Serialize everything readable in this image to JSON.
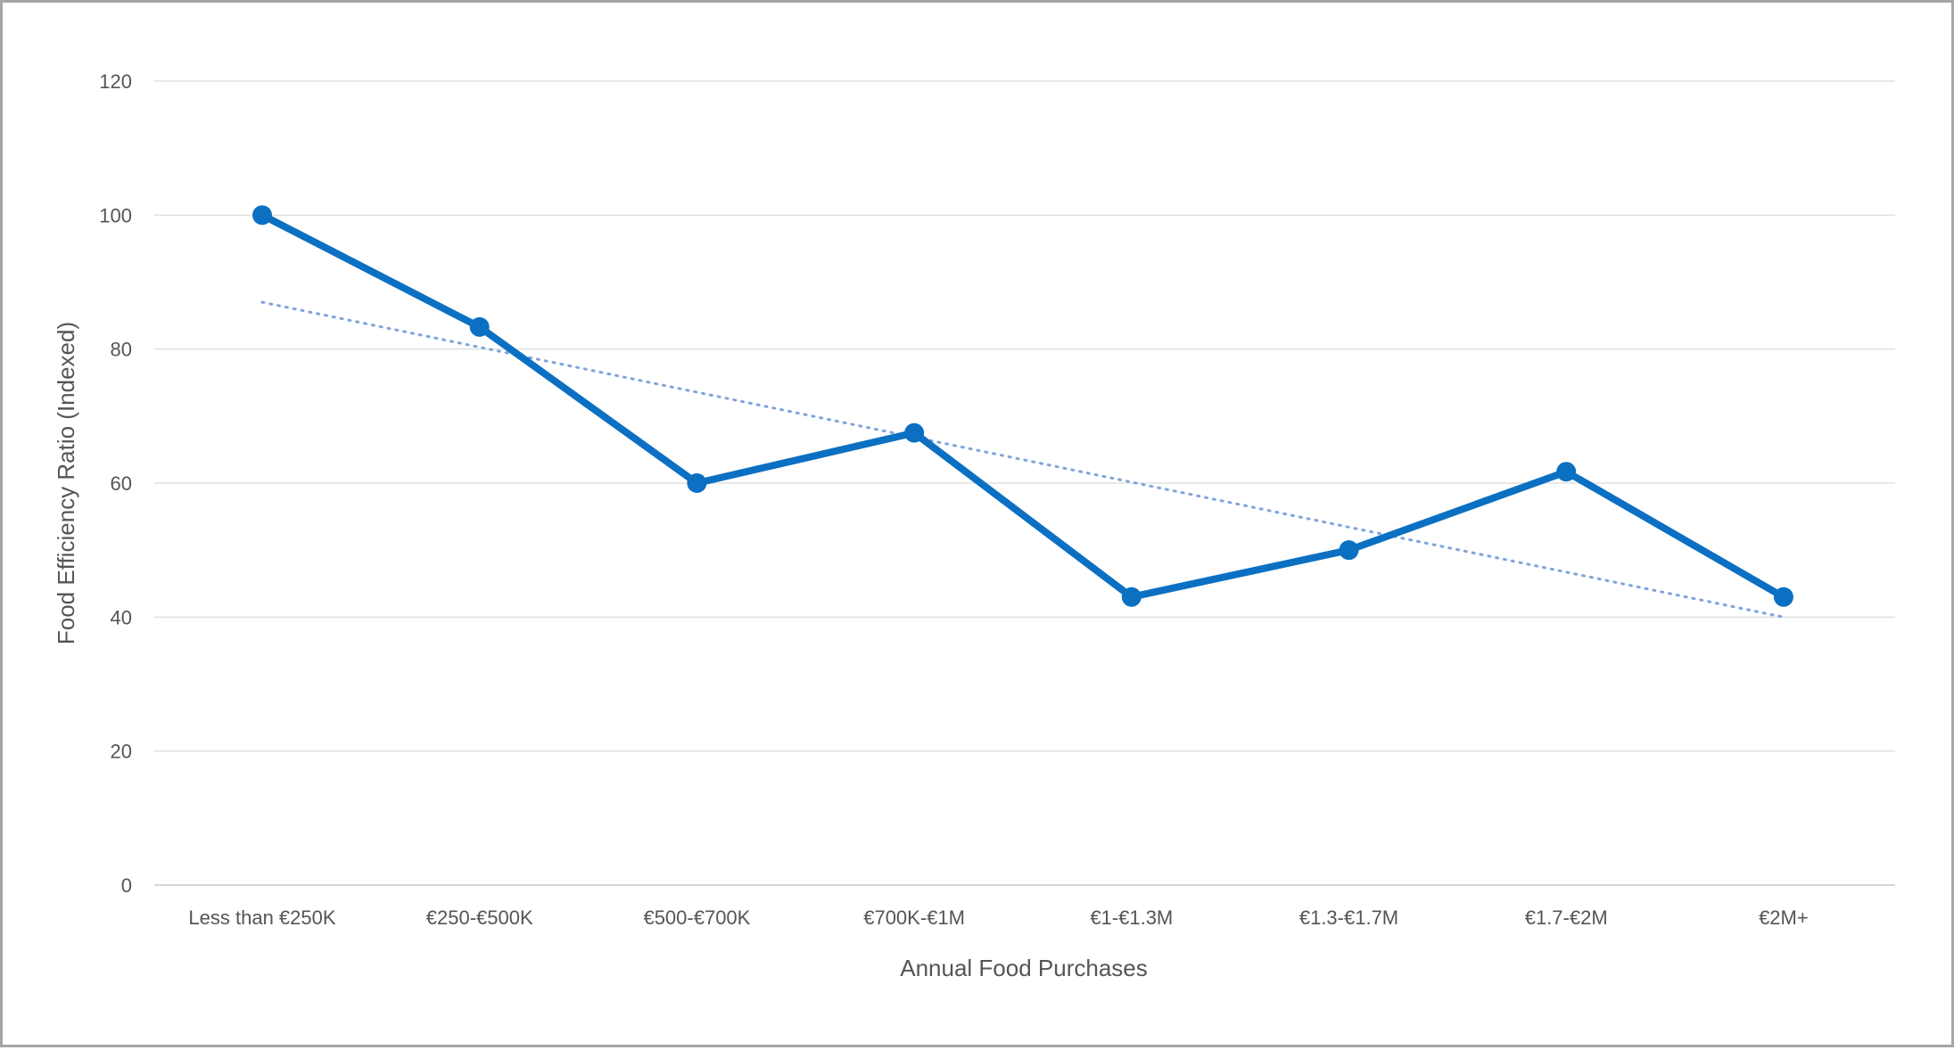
{
  "chart_data": {
    "type": "line",
    "title": "",
    "xlabel": "Annual Food Purchases",
    "ylabel": "Food Efficiency Ratio (Indexed)",
    "categories": [
      "Less than €250K",
      "€250-€500K",
      "€500-€700K",
      "€700K-€1M",
      "€1-€1.3M",
      "€1.3-€1.7M",
      "€1.7-€2M",
      "€2M+"
    ],
    "series": [
      {
        "values": [
          100,
          83.3,
          60,
          67.5,
          43,
          50,
          61.7,
          43
        ],
        "color": "#0b70c2"
      }
    ],
    "trendline": {
      "style": "dotted",
      "color": "#7fa4dc",
      "start": 87,
      "end": 40
    },
    "y_ticks": [
      "0",
      "20",
      "40",
      "60",
      "80",
      "100",
      "120"
    ],
    "ylim": [
      0,
      120
    ],
    "grid": true,
    "legend": "none"
  }
}
